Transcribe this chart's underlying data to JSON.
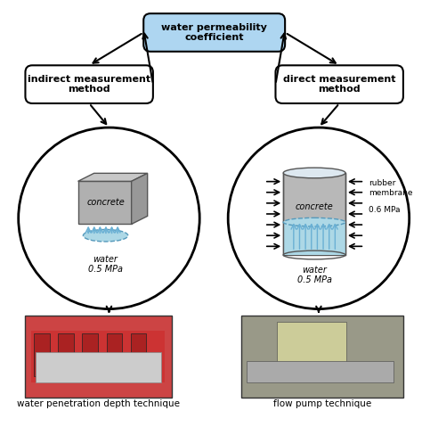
{
  "title_box": "water permeability\ncoefficient",
  "left_box": "indirect measurement\nmethod",
  "right_box": "direct measurement\nmethod",
  "left_caption": "water penetration depth technique",
  "right_caption": "flow pump technique",
  "left_circle_labels": [
    "concrete",
    "water\n0.5 MPa"
  ],
  "right_circle_labels": [
    "concrete",
    "water\n0.5 MPa",
    "rubber\nmembrane",
    "0.6 MPa"
  ],
  "bg_color": "#ffffff",
  "title_box_color": "#aed6f1",
  "box_color": "#ffffff",
  "circle_color": "#ffffff",
  "arrow_color": "#000000",
  "concrete_color": "#a0a0a0",
  "water_color": "#add8e6",
  "water_arrow_color": "#6ab0d4"
}
